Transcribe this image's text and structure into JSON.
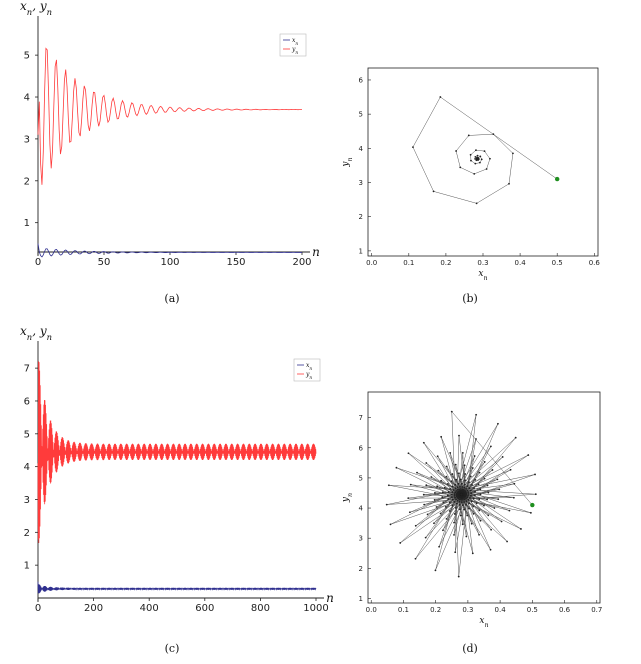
{
  "colors": {
    "x_series": "#2f2f8f",
    "y_series": "#ff3b3b",
    "phase_line": "#555555",
    "phase_point": "#222222",
    "start_point": "#1f8f1f",
    "axis": "#222222"
  },
  "chart_data": [
    {
      "id": "a",
      "caption": "(a)",
      "type": "line",
      "xlabel": "n",
      "ylabel": "x_n, y_n",
      "xlim": [
        0,
        200
      ],
      "ylim": [
        0.3,
        5.6
      ],
      "xticks": [
        0,
        50,
        100,
        150,
        200
      ],
      "yticks": [
        1,
        2,
        3,
        4,
        5
      ],
      "legend": {
        "position": "top-right",
        "entries": [
          "x_n",
          "y_n"
        ]
      },
      "series": [
        {
          "name": "x_n",
          "color": "#2f2f8f",
          "n_steps": 200,
          "x0": 0.5,
          "fixed": 0.29,
          "amp": 0.12,
          "decay": 0.035,
          "period": 7.2,
          "floor": 0.0
        },
        {
          "name": "y_n",
          "color": "#ff3b3b",
          "n_steps": 200,
          "x0": 3.1,
          "fixed": 3.7,
          "amp": 2.0,
          "decay": 0.035,
          "period": 7.2,
          "floor": 0.0
        }
      ]
    },
    {
      "id": "b",
      "caption": "(b)",
      "type": "scatter",
      "xlabel": "x_n",
      "ylabel": "y_n",
      "xlim": [
        -0.01,
        0.61
      ],
      "ylim": [
        0.85,
        6.35
      ],
      "xticks": [
        0.0,
        0.1,
        0.2,
        0.3,
        0.4,
        0.5,
        0.6
      ],
      "yticks": [
        1,
        2,
        3,
        4,
        5,
        6
      ],
      "start": [
        0.5,
        3.1
      ],
      "trajectory": {
        "center": [
          0.285,
          3.7
        ],
        "first": [
          0.185,
          5.5
        ],
        "rot_deg": 50,
        "shrink": 0.86,
        "n_points": 60
      }
    },
    {
      "id": "c",
      "caption": "(c)",
      "type": "line",
      "xlabel": "n",
      "ylabel": "x_n, y_n",
      "xlim": [
        0,
        1000
      ],
      "ylim": [
        0.0,
        7.4
      ],
      "xticks": [
        0,
        200,
        400,
        600,
        800,
        1000
      ],
      "yticks": [
        1,
        2,
        3,
        4,
        5,
        6,
        7
      ],
      "legend": {
        "position": "top-right",
        "entries": [
          "x_n",
          "y_n"
        ]
      },
      "series": [
        {
          "name": "x_n",
          "color": "#2f2f8f",
          "n_steps": 1000,
          "x0": 0.5,
          "fixed": 0.28,
          "amp": 0.12,
          "decay": 0.03,
          "period": 2.1,
          "floor": 0.03
        },
        {
          "name": "y_n",
          "color": "#ff3b3b",
          "n_steps": 1000,
          "x0": 4.1,
          "fixed": 4.45,
          "amp": 2.8,
          "decay": 0.03,
          "period": 2.1,
          "floor": 0.25
        }
      ]
    },
    {
      "id": "d",
      "caption": "(d)",
      "type": "scatter",
      "xlabel": "x_n",
      "ylabel": "y_n",
      "xlim": [
        -0.01,
        0.71
      ],
      "ylim": [
        0.85,
        7.85
      ],
      "xticks": [
        0.0,
        0.1,
        0.2,
        0.3,
        0.4,
        0.5,
        0.6,
        0.7
      ],
      "yticks": [
        1,
        2,
        3,
        4,
        5,
        6,
        7
      ],
      "start": [
        0.5,
        4.1
      ],
      "trajectory": {
        "center": [
          0.28,
          4.45
        ],
        "first": [
          0.25,
          7.2
        ],
        "rot_deg": 172,
        "shrink": 0.985,
        "n_points": 400
      }
    }
  ]
}
